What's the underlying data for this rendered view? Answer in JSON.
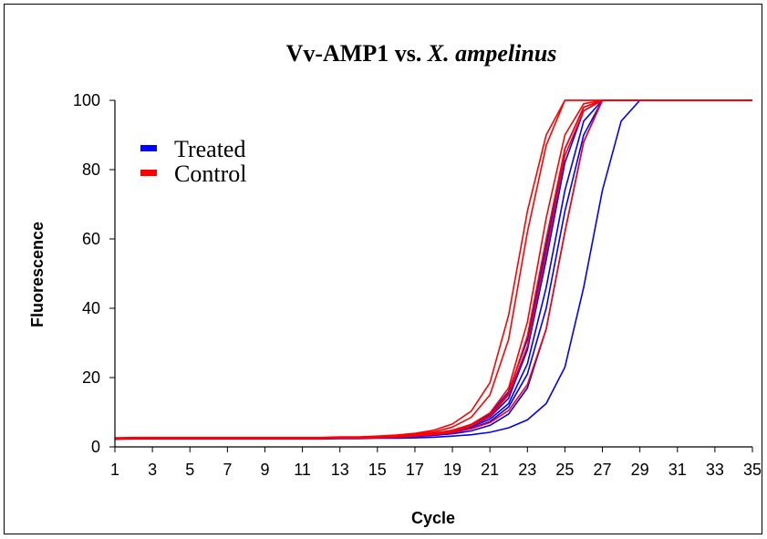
{
  "chart_data": {
    "type": "line",
    "title": {
      "prefix": "Vv-AMP1 vs. ",
      "italic": "X. ampelinus"
    },
    "xlabel": "Cycle",
    "ylabel": "Fluorescence",
    "xlim": [
      1,
      35
    ],
    "ylim": [
      0,
      100
    ],
    "x_ticks": [
      1,
      3,
      5,
      7,
      9,
      11,
      13,
      15,
      17,
      19,
      21,
      23,
      25,
      27,
      29,
      31,
      33,
      35
    ],
    "y_ticks": [
      0,
      20,
      40,
      60,
      80,
      100
    ],
    "grid": false,
    "legend_position": "top-left",
    "legend": [
      {
        "label": "Treated",
        "color": "#0000ff"
      },
      {
        "label": "Control",
        "color": "#ff0000"
      }
    ],
    "x": [
      1,
      2,
      3,
      4,
      5,
      6,
      7,
      8,
      9,
      10,
      11,
      12,
      13,
      14,
      15,
      16,
      17,
      18,
      19,
      20,
      21,
      22,
      23,
      24,
      25,
      26,
      27,
      28,
      29,
      30,
      31,
      32,
      33,
      34,
      35
    ],
    "series": [
      {
        "group": "Treated",
        "color": "#0000ff",
        "values": [
          2.2,
          2.3,
          2.3,
          2.3,
          2.3,
          2.3,
          2.3,
          2.3,
          2.3,
          2.3,
          2.3,
          2.3,
          2.4,
          2.4,
          2.5,
          2.5,
          2.6,
          2.8,
          3.1,
          3.5,
          4.2,
          5.5,
          7.8,
          12.5,
          23,
          46,
          74,
          94,
          100,
          100,
          100,
          100,
          100,
          100,
          100
        ]
      },
      {
        "group": "Treated",
        "color": "#0000ff",
        "values": [
          2.3,
          2.4,
          2.4,
          2.4,
          2.4,
          2.4,
          2.4,
          2.4,
          2.4,
          2.4,
          2.4,
          2.4,
          2.5,
          2.5,
          2.6,
          2.8,
          3.0,
          3.3,
          3.8,
          4.6,
          6.2,
          9.5,
          17,
          34,
          62,
          88,
          100,
          100,
          100,
          100,
          100,
          100,
          100,
          100,
          100
        ]
      },
      {
        "group": "Treated",
        "color": "#0000ff",
        "values": [
          2.3,
          2.4,
          2.4,
          2.4,
          2.4,
          2.4,
          2.4,
          2.4,
          2.4,
          2.4,
          2.4,
          2.4,
          2.5,
          2.6,
          2.7,
          2.9,
          3.2,
          3.6,
          4.2,
          5.3,
          7.3,
          11.5,
          21,
          40,
          68,
          90,
          100,
          100,
          100,
          100,
          100,
          100,
          100,
          100,
          100
        ]
      },
      {
        "group": "Treated",
        "color": "#0000ff",
        "values": [
          2.3,
          2.4,
          2.4,
          2.4,
          2.4,
          2.4,
          2.4,
          2.4,
          2.4,
          2.4,
          2.4,
          2.4,
          2.5,
          2.6,
          2.7,
          2.9,
          3.2,
          3.7,
          4.4,
          5.7,
          8.0,
          12.5,
          24,
          46,
          74,
          94,
          100,
          100,
          100,
          100,
          100,
          100,
          100,
          100,
          100
        ]
      },
      {
        "group": "Treated",
        "color": "#0000ff",
        "values": [
          2.3,
          2.4,
          2.4,
          2.4,
          2.4,
          2.4,
          2.4,
          2.4,
          2.4,
          2.4,
          2.4,
          2.4,
          2.5,
          2.6,
          2.8,
          3.0,
          3.3,
          3.8,
          4.6,
          6.0,
          8.6,
          14,
          28,
          54,
          82,
          97,
          100,
          100,
          100,
          100,
          100,
          100,
          100,
          100,
          100
        ]
      },
      {
        "group": "Treated",
        "color": "#0000ff",
        "values": [
          2.4,
          2.5,
          2.5,
          2.5,
          2.5,
          2.5,
          2.5,
          2.5,
          2.5,
          2.5,
          2.5,
          2.5,
          2.6,
          2.7,
          2.8,
          3.1,
          3.4,
          3.9,
          4.8,
          6.4,
          9.4,
          16,
          31,
          58,
          86,
          98,
          100,
          100,
          100,
          100,
          100,
          100,
          100,
          100,
          100
        ]
      },
      {
        "group": "Control",
        "color": "#ff0000",
        "values": [
          2.5,
          2.6,
          2.6,
          2.6,
          2.6,
          2.6,
          2.6,
          2.6,
          2.6,
          2.6,
          2.6,
          2.6,
          2.8,
          2.8,
          2.9,
          3.2,
          3.6,
          4.3,
          5.7,
          8.5,
          15,
          31,
          62,
          87,
          100,
          100,
          100,
          100,
          100,
          100,
          100,
          100,
          100,
          100,
          100
        ]
      },
      {
        "group": "Control",
        "color": "#ff0000",
        "values": [
          2.6,
          2.7,
          2.7,
          2.7,
          2.7,
          2.7,
          2.7,
          2.7,
          2.7,
          2.7,
          2.7,
          2.7,
          2.9,
          2.9,
          3.1,
          3.4,
          3.9,
          4.8,
          6.6,
          10.3,
          18.5,
          38,
          68,
          90,
          100,
          100,
          100,
          100,
          100,
          100,
          100,
          100,
          100,
          100,
          100
        ]
      },
      {
        "group": "Control",
        "color": "#ff0000",
        "values": [
          2.3,
          2.4,
          2.4,
          2.4,
          2.4,
          2.4,
          2.4,
          2.4,
          2.4,
          2.4,
          2.4,
          2.4,
          2.6,
          2.6,
          2.7,
          2.9,
          3.2,
          3.7,
          4.5,
          6.0,
          8.8,
          15,
          29,
          56,
          84,
          97,
          100,
          100,
          100,
          100,
          100,
          100,
          100,
          100,
          100
        ]
      },
      {
        "group": "Control",
        "color": "#ff0000",
        "values": [
          2.3,
          2.4,
          2.4,
          2.4,
          2.4,
          2.4,
          2.4,
          2.4,
          2.4,
          2.4,
          2.4,
          2.4,
          2.5,
          2.5,
          2.6,
          2.8,
          3.1,
          3.5,
          4.1,
          5.2,
          7.0,
          10.5,
          18,
          34,
          62,
          88,
          100,
          100,
          100,
          100,
          100,
          100,
          100,
          100,
          100
        ]
      },
      {
        "group": "Control",
        "color": "#ff0000",
        "values": [
          2.4,
          2.5,
          2.5,
          2.5,
          2.5,
          2.5,
          2.5,
          2.5,
          2.5,
          2.5,
          2.5,
          2.5,
          2.6,
          2.7,
          2.8,
          3.0,
          3.4,
          3.9,
          4.8,
          6.5,
          9.8,
          17,
          36,
          66,
          90,
          99,
          100,
          100,
          100,
          100,
          100,
          100,
          100,
          100,
          100
        ]
      },
      {
        "group": "Control",
        "color": "#ff0000",
        "values": [
          2.4,
          2.5,
          2.5,
          2.5,
          2.5,
          2.5,
          2.5,
          2.5,
          2.5,
          2.5,
          2.5,
          2.5,
          2.6,
          2.7,
          2.8,
          3.0,
          3.3,
          3.8,
          4.6,
          6.1,
          9.0,
          15.5,
          32,
          60,
          86,
          98,
          100,
          100,
          100,
          100,
          100,
          100,
          100,
          100,
          100
        ]
      }
    ]
  }
}
